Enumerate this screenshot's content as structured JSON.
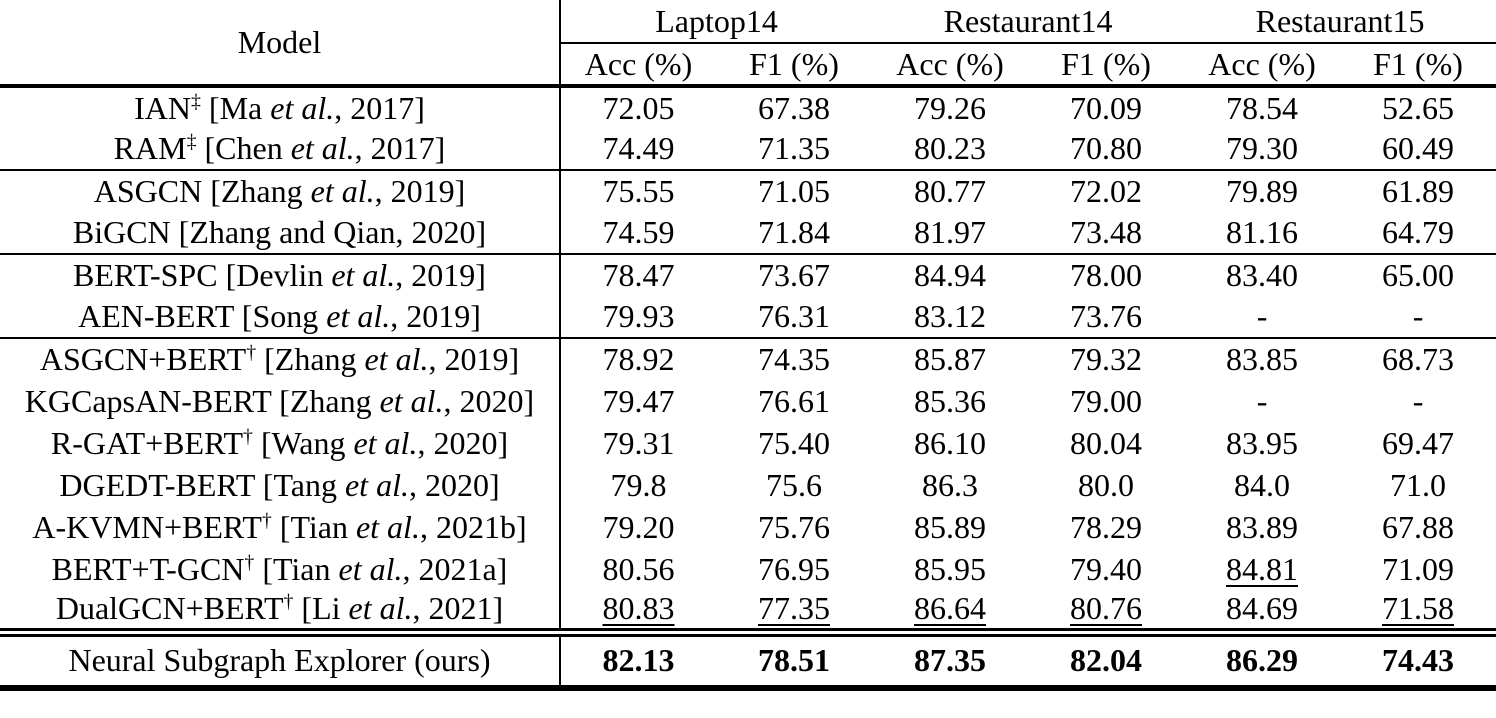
{
  "page": {
    "background_color": "#ffffff",
    "text_color": "#000000",
    "rule_color": "#000000"
  },
  "table": {
    "header": {
      "model_label": "Model",
      "datasets": [
        "Laptop14",
        "Restaurant14",
        "Restaurant15"
      ],
      "subheaders": [
        "Acc (%)",
        "F1 (%)",
        "Acc (%)",
        "F1 (%)",
        "Acc (%)",
        "F1 (%)"
      ]
    },
    "groups": [
      {
        "rows": [
          {
            "model_parts": [
              {
                "t": "IAN"
              },
              {
                "t": "‡",
                "sup": true
              },
              {
                "t": " [Ma "
              },
              {
                "t": "et al.",
                "i": true
              },
              {
                "t": ", 2017]"
              }
            ],
            "values": [
              {
                "t": "72.05"
              },
              {
                "t": "67.38"
              },
              {
                "t": "79.26"
              },
              {
                "t": "70.09"
              },
              {
                "t": "78.54"
              },
              {
                "t": "52.65"
              }
            ]
          },
          {
            "model_parts": [
              {
                "t": "RAM"
              },
              {
                "t": "‡",
                "sup": true
              },
              {
                "t": " [Chen "
              },
              {
                "t": "et al.",
                "i": true
              },
              {
                "t": ", 2017]"
              }
            ],
            "values": [
              {
                "t": "74.49"
              },
              {
                "t": "71.35"
              },
              {
                "t": "80.23"
              },
              {
                "t": "70.80"
              },
              {
                "t": "79.30"
              },
              {
                "t": "60.49"
              }
            ]
          }
        ]
      },
      {
        "rows": [
          {
            "model_parts": [
              {
                "t": "ASGCN [Zhang "
              },
              {
                "t": "et al.",
                "i": true
              },
              {
                "t": ", 2019]"
              }
            ],
            "values": [
              {
                "t": "75.55"
              },
              {
                "t": "71.05"
              },
              {
                "t": "80.77"
              },
              {
                "t": "72.02"
              },
              {
                "t": "79.89"
              },
              {
                "t": "61.89"
              }
            ]
          },
          {
            "model_parts": [
              {
                "t": "BiGCN [Zhang and Qian, 2020]"
              }
            ],
            "values": [
              {
                "t": "74.59"
              },
              {
                "t": "71.84"
              },
              {
                "t": "81.97"
              },
              {
                "t": "73.48"
              },
              {
                "t": "81.16"
              },
              {
                "t": "64.79"
              }
            ]
          }
        ]
      },
      {
        "rows": [
          {
            "model_parts": [
              {
                "t": "BERT-SPC [Devlin "
              },
              {
                "t": "et al.",
                "i": true
              },
              {
                "t": ", 2019]"
              }
            ],
            "values": [
              {
                "t": "78.47"
              },
              {
                "t": "73.67"
              },
              {
                "t": "84.94"
              },
              {
                "t": "78.00"
              },
              {
                "t": "83.40"
              },
              {
                "t": "65.00"
              }
            ]
          },
          {
            "model_parts": [
              {
                "t": "AEN-BERT [Song "
              },
              {
                "t": "et al.",
                "i": true
              },
              {
                "t": ", 2019]"
              }
            ],
            "values": [
              {
                "t": "79.93"
              },
              {
                "t": "76.31"
              },
              {
                "t": "83.12"
              },
              {
                "t": "73.76"
              },
              {
                "t": "-"
              },
              {
                "t": "-"
              }
            ]
          }
        ]
      },
      {
        "rows": [
          {
            "model_parts": [
              {
                "t": "ASGCN+BERT"
              },
              {
                "t": "†",
                "sup": true
              },
              {
                "t": " [Zhang "
              },
              {
                "t": "et al.",
                "i": true
              },
              {
                "t": ", 2019]"
              }
            ],
            "values": [
              {
                "t": "78.92"
              },
              {
                "t": "74.35"
              },
              {
                "t": "85.87"
              },
              {
                "t": "79.32"
              },
              {
                "t": "83.85"
              },
              {
                "t": "68.73"
              }
            ]
          },
          {
            "model_parts": [
              {
                "t": "KGCapsAN-BERT [Zhang "
              },
              {
                "t": "et al.",
                "i": true
              },
              {
                "t": ", 2020]"
              }
            ],
            "values": [
              {
                "t": "79.47"
              },
              {
                "t": "76.61"
              },
              {
                "t": "85.36"
              },
              {
                "t": "79.00"
              },
              {
                "t": "-"
              },
              {
                "t": "-"
              }
            ]
          },
          {
            "model_parts": [
              {
                "t": "R-GAT+BERT"
              },
              {
                "t": "†",
                "sup": true
              },
              {
                "t": " [Wang "
              },
              {
                "t": "et al.",
                "i": true
              },
              {
                "t": ", 2020]"
              }
            ],
            "values": [
              {
                "t": "79.31"
              },
              {
                "t": "75.40"
              },
              {
                "t": "86.10"
              },
              {
                "t": "80.04"
              },
              {
                "t": "83.95"
              },
              {
                "t": "69.47"
              }
            ]
          },
          {
            "model_parts": [
              {
                "t": "DGEDT-BERT [Tang "
              },
              {
                "t": "et al.",
                "i": true
              },
              {
                "t": ", 2020]"
              }
            ],
            "values": [
              {
                "t": "79.8"
              },
              {
                "t": "75.6"
              },
              {
                "t": "86.3"
              },
              {
                "t": "80.0"
              },
              {
                "t": "84.0"
              },
              {
                "t": "71.0"
              }
            ]
          },
          {
            "model_parts": [
              {
                "t": "A-KVMN+BERT"
              },
              {
                "t": "†",
                "sup": true
              },
              {
                "t": " [Tian "
              },
              {
                "t": "et al.",
                "i": true
              },
              {
                "t": ", 2021b]"
              }
            ],
            "values": [
              {
                "t": "79.20"
              },
              {
                "t": "75.76"
              },
              {
                "t": "85.89"
              },
              {
                "t": "78.29"
              },
              {
                "t": "83.89"
              },
              {
                "t": "67.88"
              }
            ]
          },
          {
            "model_parts": [
              {
                "t": "BERT+T-GCN"
              },
              {
                "t": "†",
                "sup": true
              },
              {
                "t": " [Tian "
              },
              {
                "t": "et al.",
                "i": true
              },
              {
                "t": ", 2021a]"
              }
            ],
            "values": [
              {
                "t": "80.56"
              },
              {
                "t": "76.95"
              },
              {
                "t": "85.95"
              },
              {
                "t": "79.40"
              },
              {
                "t": "84.81",
                "u": true
              },
              {
                "t": "71.09"
              }
            ]
          },
          {
            "model_parts": [
              {
                "t": "DualGCN+BERT"
              },
              {
                "t": "†",
                "sup": true
              },
              {
                "t": " [Li "
              },
              {
                "t": "et al.",
                "i": true
              },
              {
                "t": ", 2021]"
              }
            ],
            "values": [
              {
                "t": "80.83",
                "u": true
              },
              {
                "t": "77.35",
                "u": true
              },
              {
                "t": "86.64",
                "u": true
              },
              {
                "t": "80.76",
                "u": true
              },
              {
                "t": "84.69"
              },
              {
                "t": "71.58",
                "u": true
              }
            ]
          }
        ]
      },
      {
        "final": true,
        "rows": [
          {
            "model_parts": [
              {
                "t": "Neural Subgraph Explorer (ours)"
              }
            ],
            "values": [
              {
                "t": "82.13",
                "b": true
              },
              {
                "t": "78.51",
                "b": true
              },
              {
                "t": "87.35",
                "b": true
              },
              {
                "t": "82.04",
                "b": true
              },
              {
                "t": "86.29",
                "b": true
              },
              {
                "t": "74.43",
                "b": true
              }
            ]
          }
        ]
      }
    ]
  }
}
